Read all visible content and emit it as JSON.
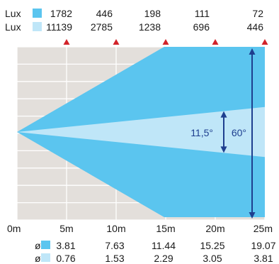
{
  "chart_data": {
    "type": "area",
    "title": "",
    "xlabel": "",
    "ylabel": "",
    "x_unit": "m",
    "x_ticks": [
      "0m",
      "5m",
      "10m",
      "15m",
      "20m",
      "25m"
    ],
    "x_positions": [
      0,
      5,
      10,
      15,
      20,
      25
    ],
    "x_range": [
      0,
      25
    ],
    "distances": [
      5,
      10,
      15,
      20,
      25
    ],
    "lux_label": "Lux",
    "diameter_symbol": "ø",
    "series": [
      {
        "name": "60°",
        "beam_angle": "60°",
        "color": "#5bc5ef",
        "lux": [
          "1782",
          "446",
          "198",
          "111",
          "72"
        ],
        "diameter": [
          "3.81",
          "7.63",
          "11.44",
          "15.25",
          "19.07"
        ]
      },
      {
        "name": "11,5°",
        "beam_angle": "11,5°",
        "color": "#bfe6f8",
        "lux": [
          "11139",
          "2785",
          "1238",
          "696",
          "446"
        ],
        "diameter": [
          "0.76",
          "1.53",
          "2.29",
          "3.05",
          "3.81"
        ]
      }
    ],
    "grid": true,
    "background_color": "#e3dfdb",
    "marker_color": "#d2232a",
    "arrow_color": "#1e3f8f"
  }
}
